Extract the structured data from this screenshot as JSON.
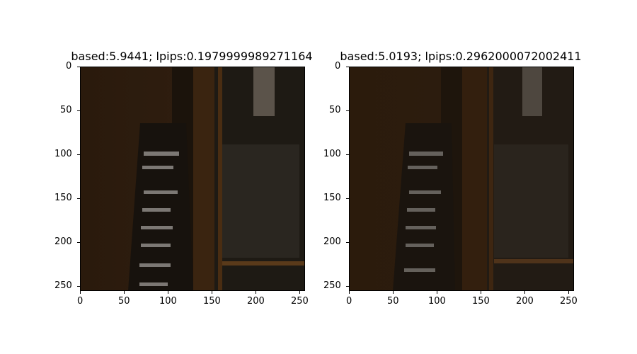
{
  "panels": [
    {
      "title": "based:5.9441; lpips:0.1979999989271164",
      "yticks": [
        "0",
        "50",
        "100",
        "150",
        "200",
        "250"
      ],
      "xticks": [
        "0",
        "50",
        "100",
        "150",
        "200",
        "250"
      ]
    },
    {
      "title": "based:5.0193; lpips:0.2962000072002411",
      "yticks": [
        "0",
        "50",
        "100",
        "150",
        "200",
        "250"
      ],
      "xticks": [
        "0",
        "50",
        "100",
        "150",
        "200",
        "250"
      ]
    }
  ]
}
